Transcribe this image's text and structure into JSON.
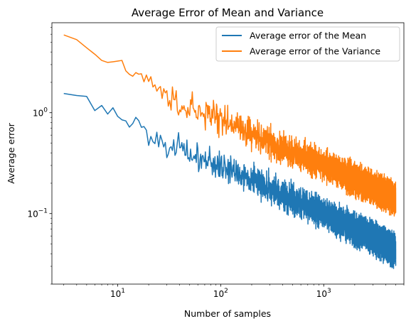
{
  "chart_data": {
    "type": "line",
    "title": "Average Error of Mean and Variance",
    "xlabel": "Number of samples",
    "ylabel": "Average error",
    "xscale": "log",
    "yscale": "log",
    "xlim": [
      2.3,
      6000
    ],
    "ylim": [
      0.02,
      7.8
    ],
    "x_ticks": [
      {
        "value": 10,
        "base": "10",
        "exp": "1"
      },
      {
        "value": 100,
        "base": "10",
        "exp": "2"
      },
      {
        "value": 1000,
        "base": "10",
        "exp": "3"
      }
    ],
    "y_ticks": [
      {
        "value": 0.1,
        "base": "10",
        "exp": "−1"
      },
      {
        "value": 1,
        "base": "10",
        "exp": "0"
      }
    ],
    "grid": false,
    "legend_position": "top-right",
    "series": [
      {
        "name": "Average error of the Mean",
        "color": "#1f77b4",
        "anchors": [
          [
            3,
            1.55
          ],
          [
            4,
            1.48
          ],
          [
            5,
            1.45
          ],
          [
            6,
            1.05
          ],
          [
            7,
            1.18
          ],
          [
            8,
            0.97
          ],
          [
            9,
            1.12
          ],
          [
            10,
            0.92
          ],
          [
            11,
            0.85
          ],
          [
            12,
            0.83
          ],
          [
            13,
            0.72
          ],
          [
            14,
            0.78
          ],
          [
            15,
            0.9
          ],
          [
            20,
            0.58
          ],
          [
            30,
            0.5
          ],
          [
            50,
            0.38
          ],
          [
            100,
            0.3
          ],
          [
            200,
            0.22
          ],
          [
            500,
            0.14
          ],
          [
            1000,
            0.1
          ],
          [
            2000,
            0.07
          ],
          [
            5000,
            0.043
          ]
        ],
        "noise_amplitude": 0.22
      },
      {
        "name": "Average error of the Variance",
        "color": "#ff7f0e",
        "anchors": [
          [
            3,
            5.9
          ],
          [
            4,
            5.3
          ],
          [
            5,
            4.4
          ],
          [
            6,
            3.8
          ],
          [
            7,
            3.3
          ],
          [
            8,
            3.15
          ],
          [
            9,
            3.2
          ],
          [
            10,
            3.25
          ],
          [
            11,
            3.3
          ],
          [
            12,
            2.6
          ],
          [
            13,
            2.4
          ],
          [
            14,
            2.3
          ],
          [
            15,
            2.5
          ],
          [
            20,
            1.95
          ],
          [
            30,
            1.55
          ],
          [
            50,
            1.1
          ],
          [
            100,
            0.85
          ],
          [
            200,
            0.62
          ],
          [
            500,
            0.4
          ],
          [
            1000,
            0.3
          ],
          [
            2000,
            0.22
          ],
          [
            5000,
            0.14
          ]
        ],
        "noise_amplitude": 0.22
      }
    ]
  }
}
